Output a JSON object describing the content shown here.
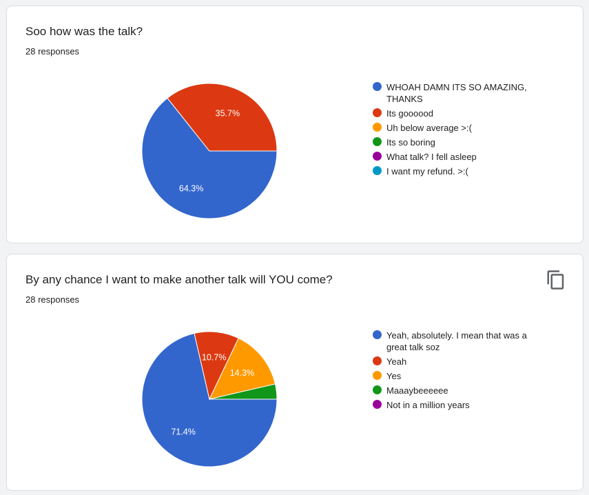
{
  "cards": [
    {
      "question": "Soo how was the talk?",
      "responses": "28 responses",
      "show_copy_button": false
    },
    {
      "question": "By any chance I want to make another talk will YOU come?",
      "responses": "28 responses",
      "show_copy_button": true,
      "copy_icon": "copy-icon"
    }
  ],
  "chart_data": [
    {
      "type": "pie",
      "title": "Soo how was the talk?",
      "legend_position": "right",
      "slices": [
        {
          "label": "WHOAH DAMN ITS SO AMAZING, THANKS",
          "value": 64.3,
          "display": "64.3%",
          "color": "#3366cc"
        },
        {
          "label": "Its goooood",
          "value": 35.7,
          "display": "35.7%",
          "color": "#dc3912"
        },
        {
          "label": "Uh below average >:(",
          "value": 0,
          "display": "",
          "color": "#ff9900"
        },
        {
          "label": "Its so boring",
          "value": 0,
          "display": "",
          "color": "#109618"
        },
        {
          "label": "What talk? I fell asleep",
          "value": 0,
          "display": "",
          "color": "#990099"
        },
        {
          "label": "I want my refund. >:(",
          "value": 0,
          "display": "",
          "color": "#0099c6"
        }
      ]
    },
    {
      "type": "pie",
      "title": "By any chance I want to make another talk will YOU come?",
      "legend_position": "right",
      "slices": [
        {
          "label": "Yeah, absolutely. I mean that was a great talk soz",
          "value": 71.4,
          "display": "71.4%",
          "color": "#3366cc"
        },
        {
          "label": "Yeah",
          "value": 10.7,
          "display": "10.7%",
          "color": "#dc3912"
        },
        {
          "label": "Yes",
          "value": 14.3,
          "display": "14.3%",
          "color": "#ff9900"
        },
        {
          "label": "Maaaybeeeeee",
          "value": 3.6,
          "display": "",
          "color": "#109618"
        },
        {
          "label": "Not in a million years",
          "value": 0,
          "display": "",
          "color": "#990099"
        }
      ]
    }
  ]
}
